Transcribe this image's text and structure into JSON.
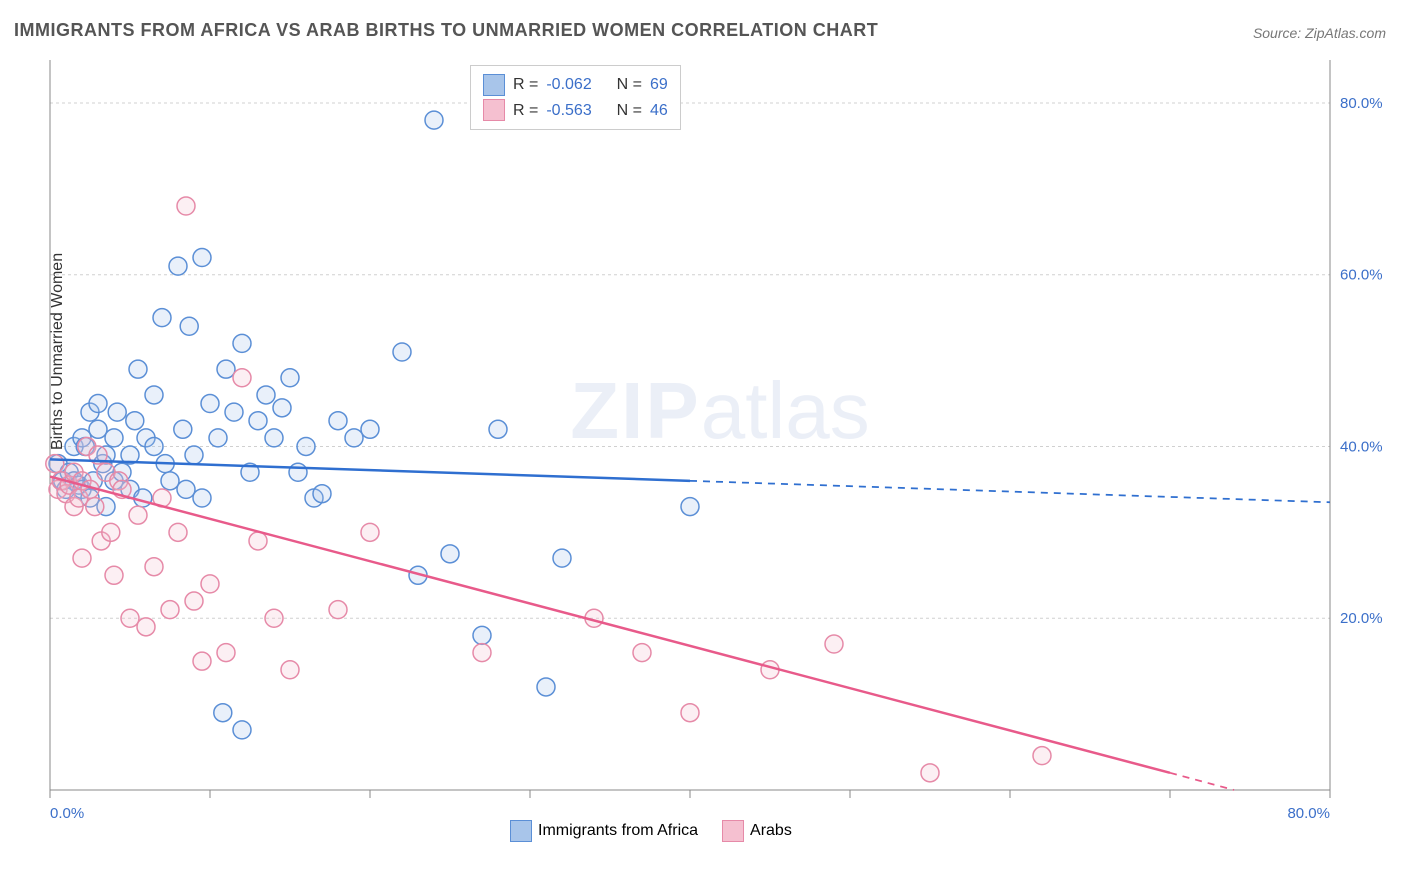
{
  "title": "IMMIGRANTS FROM AFRICA VS ARAB BIRTHS TO UNMARRIED WOMEN CORRELATION CHART",
  "source_label": "Source: ZipAtlas.com",
  "ylabel": "Births to Unmarried Women",
  "watermark_a": "ZIP",
  "watermark_b": "atlas",
  "chart": {
    "type": "scatter",
    "background_color": "#ffffff",
    "grid_color": "#d0d0d0",
    "axis_color": "#888888",
    "label_color": "#3b6fc9",
    "label_fontsize": 15,
    "xlim": [
      0,
      80
    ],
    "ylim": [
      0,
      85
    ],
    "ytick_values": [
      20,
      40,
      60,
      80
    ],
    "ytick_labels": [
      "20.0%",
      "40.0%",
      "60.0%",
      "80.0%"
    ],
    "xtick_values": [
      0,
      10,
      20,
      30,
      40,
      50,
      60,
      70,
      80
    ],
    "x_end_label": "80.0%",
    "x_start_label": "0.0%",
    "marker_radius": 9,
    "marker_stroke_width": 1.5,
    "marker_fill_opacity": 0.25,
    "trend_line_width": 2.5,
    "series": [
      {
        "name": "Immigrants from Africa",
        "color_stroke": "#5b8fd6",
        "color_fill": "#a8c5ea",
        "trend_color": "#2f6fd0",
        "R_label": "R = ",
        "R_value": "-0.062",
        "N_label": "N = ",
        "N_value": "69",
        "trend": {
          "x1": 0,
          "y1": 38.5,
          "x2_solid": 40,
          "y2_solid": 36.0,
          "x2": 80,
          "y2": 33.5
        },
        "points": [
          [
            0.5,
            38
          ],
          [
            0.8,
            36
          ],
          [
            1.0,
            35
          ],
          [
            1.2,
            37
          ],
          [
            1.5,
            40
          ],
          [
            1.5,
            36
          ],
          [
            1.8,
            35.5
          ],
          [
            2,
            35
          ],
          [
            2,
            41
          ],
          [
            2.2,
            40
          ],
          [
            2.5,
            44
          ],
          [
            2.5,
            34
          ],
          [
            2.7,
            36
          ],
          [
            3,
            42
          ],
          [
            3,
            45
          ],
          [
            3.3,
            38
          ],
          [
            3.5,
            33
          ],
          [
            3.5,
            39
          ],
          [
            4,
            36
          ],
          [
            4,
            41
          ],
          [
            4.2,
            44
          ],
          [
            4.5,
            37
          ],
          [
            5,
            39
          ],
          [
            5,
            35
          ],
          [
            5.3,
            43
          ],
          [
            5.5,
            49
          ],
          [
            5.8,
            34
          ],
          [
            6,
            41
          ],
          [
            6.5,
            40
          ],
          [
            6.5,
            46
          ],
          [
            7,
            55
          ],
          [
            7.2,
            38
          ],
          [
            7.5,
            36
          ],
          [
            8,
            61
          ],
          [
            8.3,
            42
          ],
          [
            8.5,
            35
          ],
          [
            8.7,
            54
          ],
          [
            9,
            39
          ],
          [
            9.5,
            62
          ],
          [
            9.5,
            34
          ],
          [
            10,
            45
          ],
          [
            10.5,
            41
          ],
          [
            10.8,
            9
          ],
          [
            11,
            49
          ],
          [
            11.5,
            44
          ],
          [
            12,
            52
          ],
          [
            12,
            7
          ],
          [
            12.5,
            37
          ],
          [
            13,
            43
          ],
          [
            13.5,
            46
          ],
          [
            14,
            41
          ],
          [
            14.5,
            44.5
          ],
          [
            15,
            48
          ],
          [
            15.5,
            37
          ],
          [
            16,
            40
          ],
          [
            16.5,
            34
          ],
          [
            17,
            34.5
          ],
          [
            18,
            43
          ],
          [
            19,
            41
          ],
          [
            20,
            42
          ],
          [
            22,
            51
          ],
          [
            23,
            25
          ],
          [
            24,
            78
          ],
          [
            25,
            27.5
          ],
          [
            27,
            18
          ],
          [
            28,
            42
          ],
          [
            31,
            12
          ],
          [
            32,
            27
          ],
          [
            40,
            33
          ]
        ]
      },
      {
        "name": "Arabs",
        "color_stroke": "#e68aa8",
        "color_fill": "#f5c0d0",
        "trend_color": "#e85a8a",
        "R_label": "R = ",
        "R_value": "-0.563",
        "N_label": "N = ",
        "N_value": "46",
        "trend": {
          "x1": 0,
          "y1": 36.5,
          "x2_solid": 70,
          "y2_solid": 2,
          "x2": 74,
          "y2": 0
        },
        "points": [
          [
            0.3,
            38
          ],
          [
            0.5,
            35
          ],
          [
            0.7,
            36
          ],
          [
            1.0,
            34.5
          ],
          [
            1.2,
            35.5
          ],
          [
            1.5,
            33
          ],
          [
            1.5,
            37
          ],
          [
            1.8,
            34
          ],
          [
            2,
            36
          ],
          [
            2,
            27
          ],
          [
            2.3,
            40
          ],
          [
            2.5,
            35
          ],
          [
            2.8,
            33
          ],
          [
            3,
            39
          ],
          [
            3.2,
            29
          ],
          [
            3.5,
            37
          ],
          [
            3.8,
            30
          ],
          [
            4,
            25
          ],
          [
            4.3,
            36
          ],
          [
            4.5,
            35
          ],
          [
            5,
            20
          ],
          [
            5.5,
            32
          ],
          [
            6,
            19
          ],
          [
            6.5,
            26
          ],
          [
            7,
            34
          ],
          [
            7.5,
            21
          ],
          [
            8,
            30
          ],
          [
            8.5,
            68
          ],
          [
            9,
            22
          ],
          [
            9.5,
            15
          ],
          [
            10,
            24
          ],
          [
            11,
            16
          ],
          [
            12,
            48
          ],
          [
            13,
            29
          ],
          [
            14,
            20
          ],
          [
            15,
            14
          ],
          [
            18,
            21
          ],
          [
            20,
            30
          ],
          [
            27,
            16
          ],
          [
            34,
            20
          ],
          [
            37,
            16
          ],
          [
            40,
            9
          ],
          [
            45,
            14
          ],
          [
            49,
            17
          ],
          [
            55,
            2
          ],
          [
            62,
            4
          ]
        ]
      }
    ]
  },
  "legend_bottom": {
    "items": [
      {
        "label": "Immigrants from Africa"
      },
      {
        "label": "Arabs"
      }
    ]
  }
}
